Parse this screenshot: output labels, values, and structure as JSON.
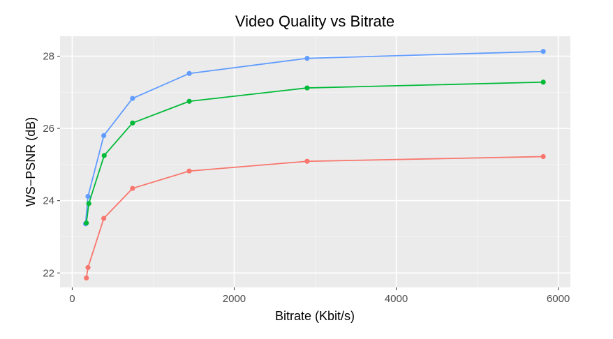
{
  "chart_data": {
    "type": "line",
    "title": "Video Quality vs Bitrate",
    "xlabel": "Bitrate (Kbit/s)",
    "ylabel": "WS−PSNR (dB)",
    "xlim": [
      -150,
      6150
    ],
    "ylim": [
      21.6,
      28.55
    ],
    "x_ticks": [
      0,
      2000,
      4000,
      6000
    ],
    "x_tick_labels": [
      "0",
      "2000",
      "4000",
      "6000"
    ],
    "y_ticks": [
      22,
      24,
      26,
      28
    ],
    "y_tick_labels": [
      "22",
      "24",
      "26",
      "28"
    ],
    "grid": true,
    "legend": "none",
    "series": [
      {
        "color": "#619CFF",
        "x": [
          165,
          195,
          390,
          745,
          1445,
          2900,
          5815
        ],
        "y": [
          23.36,
          24.12,
          25.8,
          26.83,
          27.52,
          27.94,
          28.13
        ]
      },
      {
        "color": "#00BA38",
        "x": [
          175,
          205,
          395,
          745,
          1445,
          2900,
          5815
        ],
        "y": [
          23.38,
          23.92,
          25.25,
          26.15,
          26.75,
          27.12,
          27.28
        ]
      },
      {
        "color": "#F8766D",
        "x": [
          175,
          195,
          390,
          745,
          1445,
          2900,
          5815
        ],
        "y": [
          21.86,
          22.15,
          23.51,
          24.34,
          24.82,
          25.09,
          25.22
        ]
      }
    ]
  }
}
